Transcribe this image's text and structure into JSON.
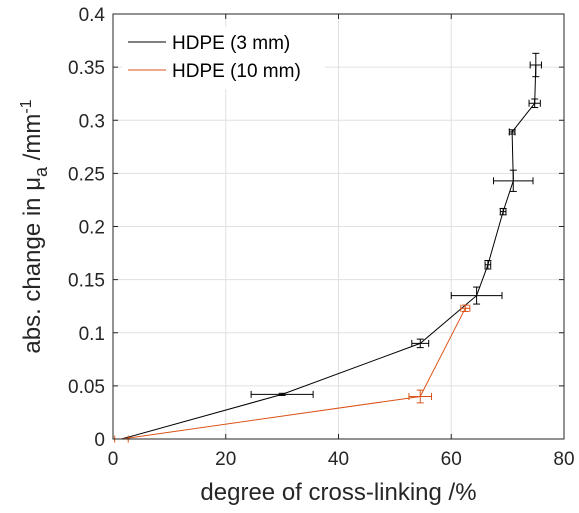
{
  "chart_data": {
    "type": "line",
    "xlabel": "degree of cross-linking /%",
    "ylabel": {
      "main": "abs. change in μ",
      "subscript": "a",
      "unit": " /mm",
      "superscript": "-1"
    },
    "xlim": [
      0,
      80
    ],
    "ylim": [
      0,
      0.4
    ],
    "xticks": [
      0,
      20,
      40,
      60,
      80
    ],
    "yticks": [
      0,
      0.05,
      0.1,
      0.15,
      0.2,
      0.25,
      0.3,
      0.35,
      0.4
    ],
    "grid": true,
    "legend_position": "top-left",
    "series": [
      {
        "name": "HDPE (3 mm)",
        "color": "#000000",
        "x": [
          1.5,
          30,
          54.5,
          64.5,
          66.5,
          69.2,
          71,
          70.8,
          74.8,
          75
        ],
        "y": [
          0,
          0.042,
          0.09,
          0.135,
          0.164,
          0.214,
          0.243,
          0.289,
          0.316,
          0.352
        ],
        "xerr": [
          0,
          5.5,
          1.5,
          4.5,
          0.5,
          0.5,
          3.5,
          0.5,
          1.0,
          1.0
        ],
        "yerr": [
          0,
          0.001,
          0.004,
          0.008,
          0.004,
          0.003,
          0.01,
          0.002,
          0.004,
          0.011
        ]
      },
      {
        "name": "HDPE (10 mm)",
        "color": "#d95319",
        "x": [
          1.5,
          54.5,
          62.5
        ],
        "y": [
          0,
          0.04,
          0.123
        ],
        "xerr": [
          1.2,
          2.0,
          0.8
        ],
        "yerr": [
          0,
          0.006,
          0.003
        ]
      }
    ]
  }
}
